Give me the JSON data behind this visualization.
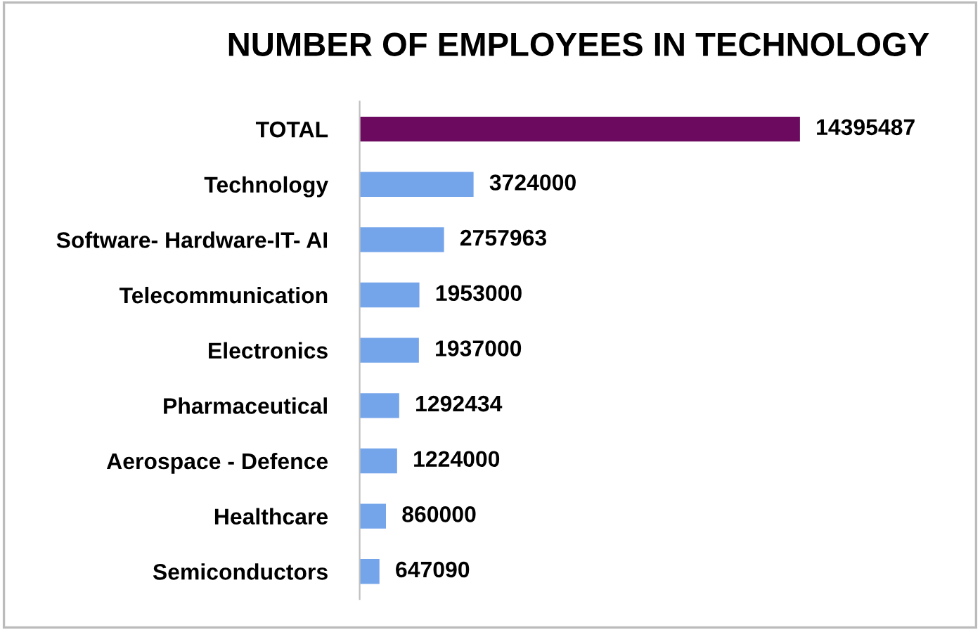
{
  "chart_data": {
    "type": "bar",
    "orientation": "horizontal",
    "title": "NUMBER OF EMPLOYEES IN TECHNOLOGY",
    "categories": [
      "TOTAL",
      "Technology",
      "Software- Hardware-IT- AI",
      "Telecommunication",
      "Electronics",
      "Pharmaceutical",
      "Aerospace - Defence",
      "Healthcare",
      "Semiconductors"
    ],
    "values": [
      14395487,
      3724000,
      2757963,
      1953000,
      1937000,
      1292434,
      1224000,
      860000,
      647090
    ],
    "colors": [
      "#6b0a5f",
      "#74a4ea",
      "#74a4ea",
      "#74a4ea",
      "#74a4ea",
      "#74a4ea",
      "#74a4ea",
      "#74a4ea",
      "#74a4ea"
    ],
    "data_labels": true,
    "grid": false,
    "tick_labels": "y"
  }
}
